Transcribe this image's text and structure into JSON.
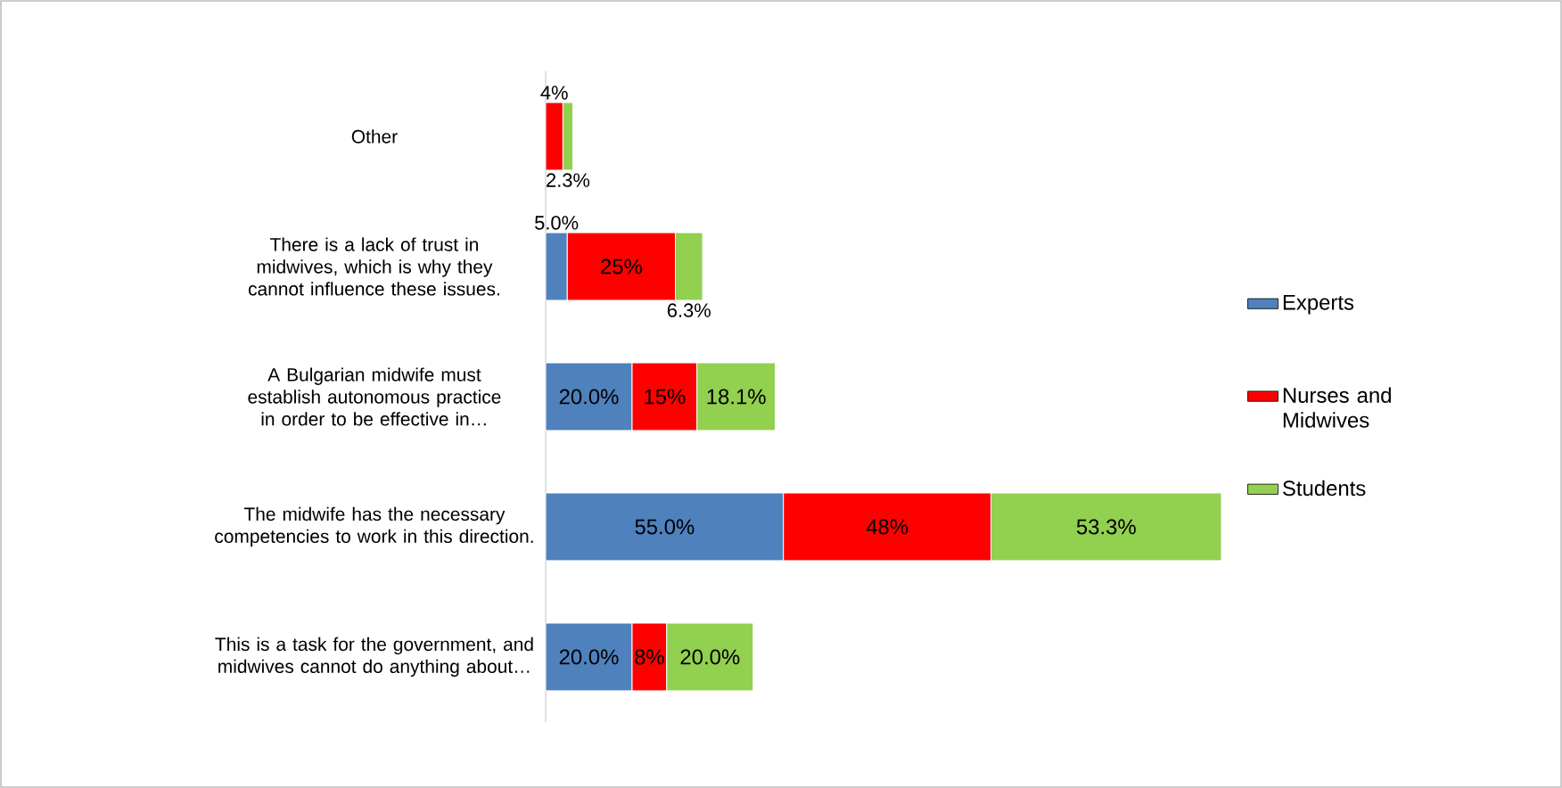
{
  "chart_data": {
    "type": "bar",
    "orientation": "horizontal",
    "stacked": true,
    "legend": "right",
    "categories": [
      "Other",
      "There is a lack of trust in midwives, which is why they cannot influence these issues.",
      "A Bulgarian midwife must establish autonomous practice in order to be effective in…",
      "The midwife has the necessary competencies to work in this direction.",
      "This is a task for the government, and midwives cannot do anything about…"
    ],
    "series": [
      {
        "name": "Experts",
        "color": "#4f81bd",
        "values": [
          null,
          5.0,
          20.0,
          55.0,
          20.0
        ],
        "value_labels": [
          null,
          "5.0%",
          "20.0%",
          "55.0%",
          "20.0%"
        ]
      },
      {
        "name": "Nurses and Midwives",
        "color": "#ff0000",
        "values": [
          4,
          25,
          15,
          48,
          8
        ],
        "value_labels": [
          "4%",
          "25%",
          "15%",
          "48%",
          "8%"
        ]
      },
      {
        "name": "Students",
        "color": "#92d050",
        "values": [
          2.3,
          6.3,
          18.1,
          53.3,
          20.0
        ],
        "value_labels": [
          "2.3%",
          "6.3%",
          "18.1%",
          "53.3%",
          "20.0%"
        ]
      }
    ]
  }
}
